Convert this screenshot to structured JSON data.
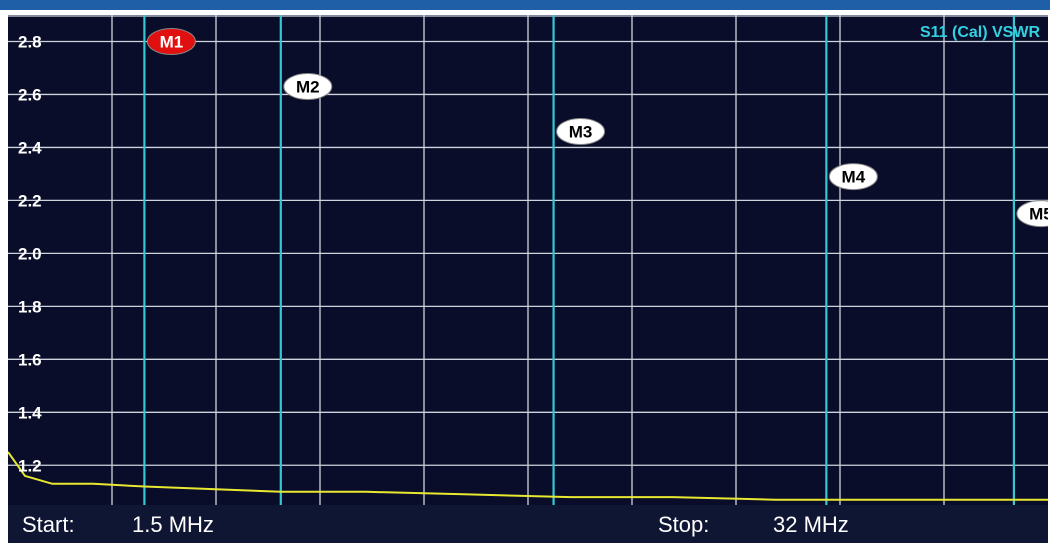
{
  "chart_data": {
    "type": "line",
    "title": "S11 (Cal) VSWR",
    "y_ticks": [
      "2.8",
      "2.6",
      "2.4",
      "2.2",
      "2.0",
      "1.8",
      "1.6",
      "1.4",
      "1.2"
    ],
    "ylim": [
      1.05,
      2.9
    ],
    "x_range_mhz": [
      1.5,
      32
    ],
    "grid": true,
    "series": [
      {
        "x": [
          1.5,
          2.0,
          2.8,
          4.0,
          5.5,
          7.5,
          9.5,
          12.0,
          15.0,
          18.0,
          21.0,
          24.0,
          27.0,
          30.0,
          32.0
        ],
        "y": [
          1.25,
          1.16,
          1.13,
          1.13,
          1.12,
          1.11,
          1.1,
          1.1,
          1.09,
          1.08,
          1.08,
          1.07,
          1.07,
          1.07,
          1.07
        ],
        "color": "#e8e830"
      }
    ],
    "markers": [
      {
        "label": "M1",
        "x_mhz": 5.5,
        "y": 2.8,
        "active": true
      },
      {
        "label": "M2",
        "x_mhz": 9.5,
        "y": 2.63
      },
      {
        "label": "M3",
        "x_mhz": 17.5,
        "y": 2.46
      },
      {
        "label": "M4",
        "x_mhz": 25.5,
        "y": 2.29
      },
      {
        "label": "M5",
        "x_mhz": 31.0,
        "y": 2.15
      }
    ],
    "colors": {
      "background": "#090d2a",
      "grid": "#cfd3dc",
      "marker_line": "#33c8d4",
      "active_marker": "#e01010",
      "inactive_marker": "#ffffff"
    }
  },
  "footer": {
    "start_label": "Start:",
    "start_value": "1.5 MHz",
    "stop_label": "Stop:",
    "stop_value": "32 MHz"
  }
}
